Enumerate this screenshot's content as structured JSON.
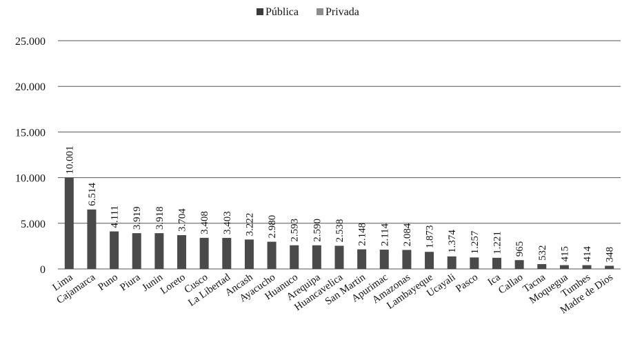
{
  "chart_data": {
    "type": "bar",
    "categories": [
      "Lima",
      "Cajamarca",
      "Puno",
      "Piura",
      "Junin",
      "Loreto",
      "Cusco",
      "La Libertad",
      "Ancash",
      "Ayacucho",
      "Huanuco",
      "Arequipa",
      "Huancavelica",
      "San Martin",
      "Apurimac",
      "Amazonas",
      "Lambayeque",
      "Ucayali",
      "Pasco",
      "Ica",
      "Callao",
      "Tacna",
      "Moquegua",
      "Tumbes",
      "Madre de Dios"
    ],
    "values": [
      10001,
      6514,
      4111,
      3919,
      3918,
      3704,
      3408,
      3403,
      3222,
      2980,
      2593,
      2590,
      2538,
      2148,
      2114,
      2084,
      1873,
      1374,
      1257,
      1221,
      965,
      532,
      415,
      414,
      348
    ],
    "value_labels": [
      "10.001",
      "6.514",
      "4.111",
      "3.919",
      "3.918",
      "3.704",
      "3.408",
      "3.403",
      "3.222",
      "2.980",
      "2.593",
      "2.590",
      "2.538",
      "2.148",
      "2.114",
      "2.084",
      "1.873",
      "1.374",
      "1.257",
      "1.221",
      "965",
      "532",
      "415",
      "414",
      "348"
    ],
    "series_legend": [
      {
        "name": "Pública",
        "color": "#3a3a3a"
      },
      {
        "name": "Privada",
        "color": "#8c8c8c"
      }
    ],
    "bar_color": "#4a4a4a",
    "yticks": [
      0,
      5000,
      10000,
      15000,
      20000,
      25000
    ],
    "ytick_labels": [
      "0",
      "5.000",
      "10.000",
      "15.000",
      "20.000",
      "25.000"
    ],
    "ylim": [
      0,
      25000
    ],
    "grid": true,
    "legend_position": "top-center",
    "title": "",
    "xlabel": "",
    "ylabel": ""
  }
}
